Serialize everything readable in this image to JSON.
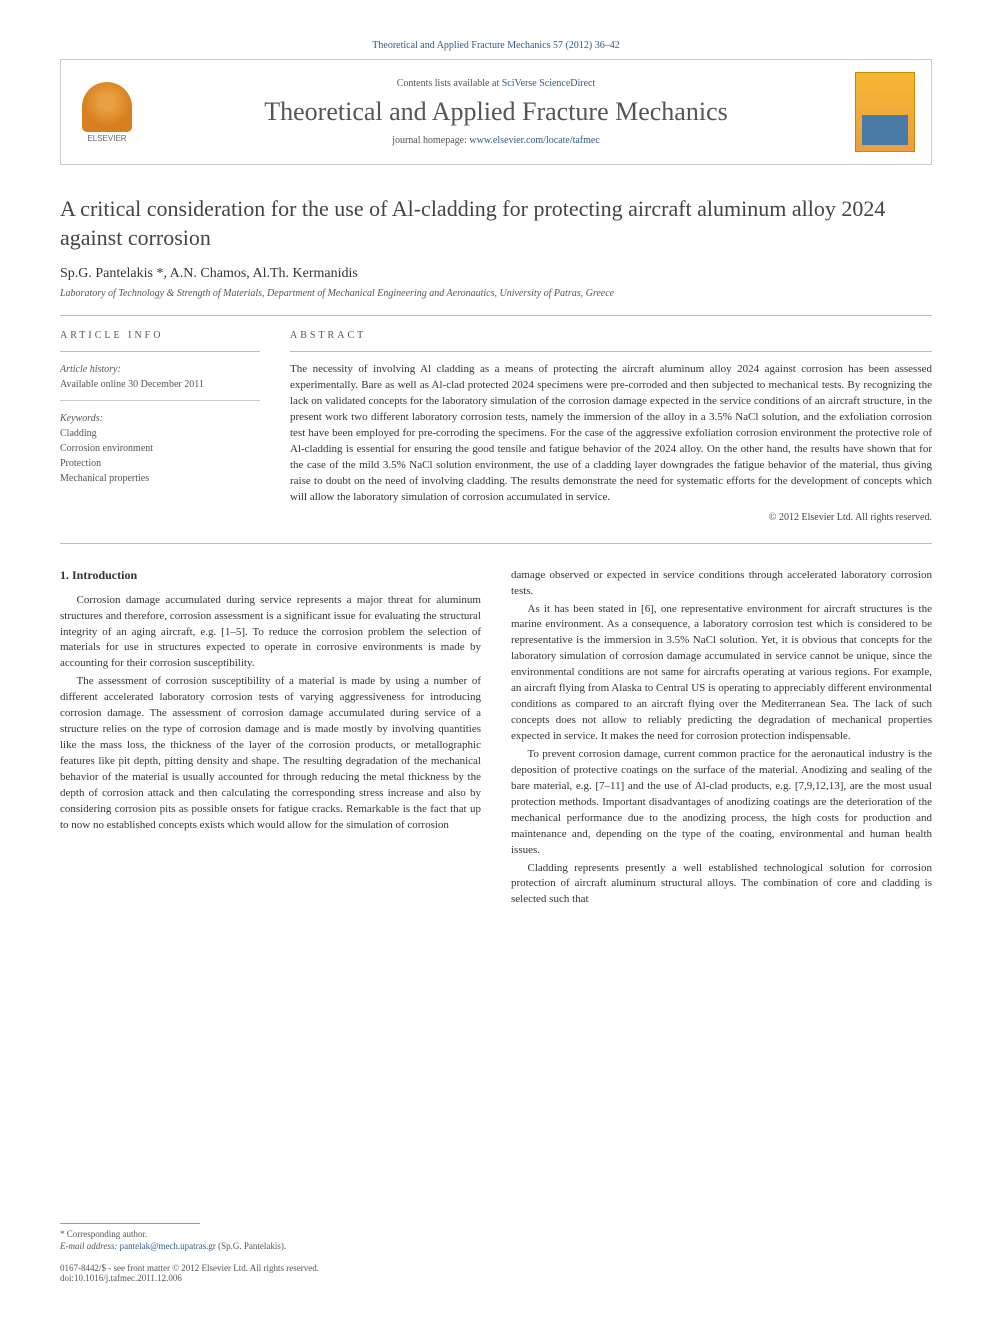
{
  "citation": "Theoretical and Applied Fracture Mechanics 57 (2012) 36–42",
  "journal_box": {
    "contents_prefix": "Contents lists available at ",
    "contents_link": "SciVerse ScienceDirect",
    "journal_name": "Theoretical and Applied Fracture Mechanics",
    "homepage_prefix": "journal homepage: ",
    "homepage_url": "www.elsevier.com/locate/tafmec",
    "publisher_label": "ELSEVIER"
  },
  "article": {
    "title": "A critical consideration for the use of Al-cladding for protecting aircraft aluminum alloy 2024 against corrosion",
    "authors": "Sp.G. Pantelakis *, A.N. Chamos, Al.Th. Kermanidis",
    "affiliation": "Laboratory of Technology & Strength of Materials, Department of Mechanical Engineering and Aeronautics, University of Patras, Greece"
  },
  "info": {
    "heading": "ARTICLE INFO",
    "history_label": "Article history:",
    "history_value": "Available online 30 December 2011",
    "keywords_label": "Keywords:",
    "keywords": [
      "Cladding",
      "Corrosion environment",
      "Protection",
      "Mechanical properties"
    ]
  },
  "abstract": {
    "heading": "ABSTRACT",
    "text": "The necessity of involving Al cladding as a means of protecting the aircraft aluminum alloy 2024 against corrosion has been assessed experimentally. Bare as well as Al-clad protected 2024 specimens were pre-corroded and then subjected to mechanical tests. By recognizing the lack on validated concepts for the laboratory simulation of the corrosion damage expected in the service conditions of an aircraft structure, in the present work two different laboratory corrosion tests, namely the immersion of the alloy in a 3.5% NaCl solution, and the exfoliation corrosion test have been employed for pre-corroding the specimens. For the case of the aggressive exfoliation corrosion environment the protective role of Al-cladding is essential for ensuring the good tensile and fatigue behavior of the 2024 alloy. On the other hand, the results have shown that for the case of the mild 3.5% NaCl solution environment, the use of a cladding layer downgrades the fatigue behavior of the material, thus giving raise to doubt on the need of involving cladding. The results demonstrate the need for systematic efforts for the development of concepts which will allow the laboratory simulation of corrosion accumulated in service.",
    "copyright": "© 2012 Elsevier Ltd. All rights reserved."
  },
  "body": {
    "heading": "1. Introduction",
    "left_paras": [
      "Corrosion damage accumulated during service represents a major threat for aluminum structures and therefore, corrosion assessment is a significant issue for evaluating the structural integrity of an aging aircraft, e.g. [1–5]. To reduce the corrosion problem the selection of materials for use in structures expected to operate in corrosive environments is made by accounting for their corrosion susceptibility.",
      "The assessment of corrosion susceptibility of a material is made by using a number of different accelerated laboratory corrosion tests of varying aggressiveness for introducing corrosion damage. The assessment of corrosion damage accumulated during service of a structure relies on the type of corrosion damage and is made mostly by involving quantities like the mass loss, the thickness of the layer of the corrosion products, or metallographic features like pit depth, pitting density and shape. The resulting degradation of the mechanical behavior of the material is usually accounted for through reducing the metal thickness by the depth of corrosion attack and then calculating the corresponding stress increase and also by considering corrosion pits as possible onsets for fatigue cracks. Remarkable is the fact that up to now no established concepts exists which would allow for the simulation of corrosion"
    ],
    "right_paras": [
      "damage observed or expected in service conditions through accelerated laboratory corrosion tests.",
      "As it has been stated in [6], one representative environment for aircraft structures is the marine environment. As a consequence, a laboratory corrosion test which is considered to be representative is the immersion in 3.5% NaCl solution. Yet, it is obvious that concepts for the laboratory simulation of corrosion damage accumulated in service cannot be unique, since the environmental conditions are not same for aircrafts operating at various regions. For example, an aircraft flying from Alaska to Central US is operating to appreciably different environmental conditions as compared to an aircraft flying over the Mediterranean Sea. The lack of such concepts does not allow to reliably predicting the degradation of mechanical properties expected in service. It makes the need for corrosion protection indispensable.",
      "To prevent corrosion damage, current common practice for the aeronautical industry is the deposition of protective coatings on the surface of the material. Anodizing and sealing of the bare material, e.g. [7–11] and the use of Al-clad products, e.g. [7,9,12,13], are the most usual protection methods. Important disadvantages of anodizing coatings are the deterioration of the mechanical performance due to the anodizing process, the high costs for production and maintenance and, depending on the type of the coating, environmental and human health issues.",
      "Cladding represents presently a well established technological solution for corrosion protection of aircraft aluminum structural alloys. The combination of core and cladding is selected such that"
    ]
  },
  "footer": {
    "corresponding": "* Corresponding author.",
    "email_label": "E-mail address: ",
    "email": "pantelak@mech.upatras.gr",
    "email_suffix": " (Sp.G. Pantelakis).",
    "issn_line": "0167-8442/$ - see front matter © 2012 Elsevier Ltd. All rights reserved.",
    "doi_line": "doi:10.1016/j.tafmec.2011.12.006"
  },
  "colors": {
    "link": "#2e5c8a",
    "text": "#333333",
    "muted": "#555555",
    "border": "#cccccc"
  }
}
